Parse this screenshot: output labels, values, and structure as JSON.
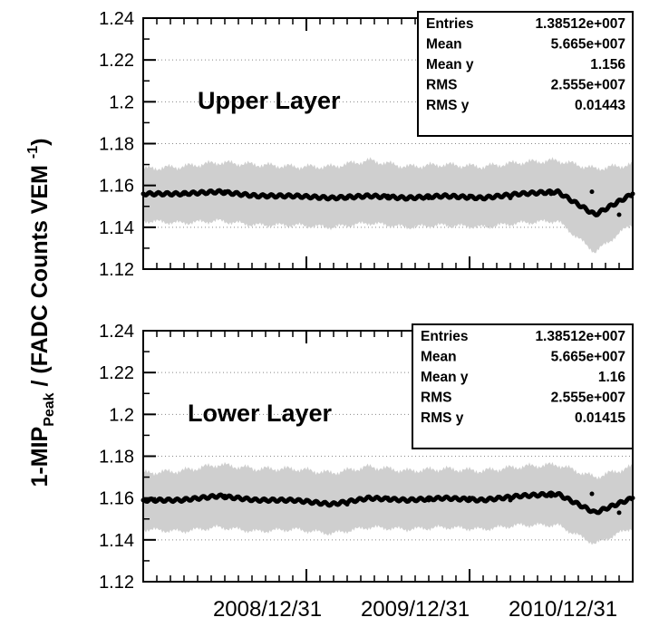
{
  "y_axis_label": {
    "prefix": "1-MIP",
    "subscript": "Peak",
    "middle": " / (FADC Counts VEM ",
    "superscript": "-1",
    "suffix": ")"
  },
  "x_tick_labels": [
    "2008/12/31",
    "2009/12/31",
    "2010/12/31"
  ],
  "chart_data": [
    {
      "type": "line",
      "title": "Upper Layer",
      "xlabel": "",
      "ylabel": "1-MIP Peak / (FADC Counts VEM -1)",
      "ylim": [
        1.12,
        1.24
      ],
      "y_ticks": [
        "1.12",
        "1.14",
        "1.16",
        "1.18",
        "1.2",
        "1.22",
        "1.24"
      ],
      "x_range": [
        "2008-01",
        "2011-01"
      ],
      "grid": "horizontal dotted",
      "series": [
        {
          "name": "",
          "x": [
            "2008-01",
            "2008-04",
            "2008-07",
            "2008-10",
            "2009-01",
            "2009-04",
            "2009-07",
            "2009-10",
            "2010-01",
            "2010-04",
            "2010-07",
            "2010-10",
            "2010-12",
            "2011-01"
          ],
          "values": [
            1.156,
            1.156,
            1.157,
            1.155,
            1.155,
            1.154,
            1.155,
            1.154,
            1.155,
            1.154,
            1.156,
            1.157,
            1.146,
            1.156
          ],
          "spread_low": [
            1.143,
            1.142,
            1.143,
            1.141,
            1.141,
            1.14,
            1.142,
            1.14,
            1.141,
            1.14,
            1.142,
            1.143,
            1.128,
            1.142
          ],
          "spread_high": [
            1.168,
            1.169,
            1.171,
            1.17,
            1.169,
            1.169,
            1.172,
            1.169,
            1.17,
            1.169,
            1.171,
            1.172,
            1.168,
            1.17
          ]
        }
      ],
      "stats": [
        {
          "label": "Entries",
          "value": "1.38512e+007"
        },
        {
          "label": "Mean",
          "value": "5.665e+007"
        },
        {
          "label": "Mean y",
          "value": "1.156"
        },
        {
          "label": "RMS",
          "value": "2.555e+007"
        },
        {
          "label": "RMS y",
          "value": "0.01443"
        }
      ]
    },
    {
      "type": "line",
      "title": "Lower Layer",
      "xlabel": "",
      "ylabel": "1-MIP Peak / (FADC Counts VEM -1)",
      "ylim": [
        1.12,
        1.24
      ],
      "y_ticks": [
        "1.12",
        "1.14",
        "1.16",
        "1.18",
        "1.2",
        "1.22",
        "1.24"
      ],
      "x_range": [
        "2008-01",
        "2011-01"
      ],
      "x_ticks": [
        "2008/12/31",
        "2009/12/31",
        "2010/12/31"
      ],
      "grid": "horizontal dotted",
      "series": [
        {
          "name": "",
          "x": [
            "2008-01",
            "2008-04",
            "2008-07",
            "2008-10",
            "2009-01",
            "2009-04",
            "2009-07",
            "2009-10",
            "2010-01",
            "2010-04",
            "2010-07",
            "2010-10",
            "2010-12",
            "2011-01"
          ],
          "values": [
            1.159,
            1.159,
            1.161,
            1.159,
            1.159,
            1.157,
            1.16,
            1.159,
            1.16,
            1.159,
            1.161,
            1.162,
            1.153,
            1.16
          ],
          "spread_low": [
            1.145,
            1.144,
            1.146,
            1.144,
            1.145,
            1.143,
            1.146,
            1.145,
            1.146,
            1.145,
            1.147,
            1.147,
            1.138,
            1.146
          ],
          "spread_high": [
            1.172,
            1.173,
            1.176,
            1.174,
            1.174,
            1.172,
            1.175,
            1.173,
            1.174,
            1.173,
            1.175,
            1.176,
            1.17,
            1.175
          ]
        }
      ],
      "stats": [
        {
          "label": "Entries",
          "value": "1.38512e+007"
        },
        {
          "label": "Mean",
          "value": "5.665e+007"
        },
        {
          "label": "Mean y",
          "value": "1.16"
        },
        {
          "label": "RMS",
          "value": "2.555e+007"
        },
        {
          "label": "RMS y",
          "value": "0.01415"
        }
      ]
    }
  ]
}
